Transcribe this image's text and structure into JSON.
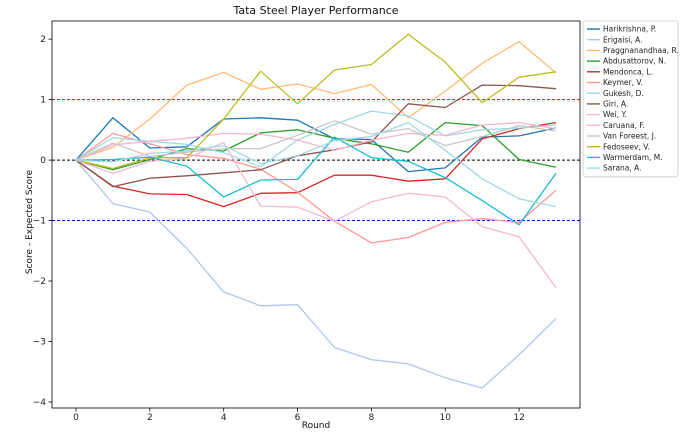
{
  "chart_data": {
    "type": "line",
    "title": "Tata Steel Player Performance",
    "xlabel": "Round",
    "ylabel": "Score - Expected Score",
    "xlim": [
      -0.65,
      13.65
    ],
    "ylim": [
      -4.1,
      2.3
    ],
    "xticks": [
      0,
      2,
      4,
      6,
      8,
      10,
      12
    ],
    "yticks": [
      -4,
      -3,
      -2,
      -1,
      0,
      1,
      2
    ],
    "grid": false,
    "legend_position": "outside-top-right",
    "reference_lines": [
      {
        "y": 1,
        "color": "#ff0000",
        "style": "dashed"
      },
      {
        "y": 0,
        "color": "#000000",
        "style": "dashed"
      },
      {
        "y": -1,
        "color": "#0000ff",
        "style": "dashed"
      }
    ],
    "x": [
      0,
      1,
      2,
      3,
      4,
      5,
      6,
      7,
      8,
      9,
      10,
      11,
      12,
      13
    ],
    "series": [
      {
        "name": "Harikrishna, P.",
        "color": "#1f77b4",
        "values": [
          0,
          0.7,
          0.2,
          0.22,
          0.68,
          0.7,
          0.66,
          0.35,
          0.34,
          -0.19,
          -0.13,
          0.38,
          0.4,
          0.53
        ]
      },
      {
        "name": "Erigaisi, A.",
        "color": "#aec7e8",
        "values": [
          0,
          -0.72,
          -0.86,
          -1.46,
          -2.18,
          -2.41,
          -2.39,
          -3.1,
          -3.3,
          -3.37,
          -3.6,
          -3.77,
          -3.22,
          -2.62
        ]
      },
      {
        "name": "Praggnanandhaa, R.",
        "color": "#ffbb78",
        "values": [
          0,
          0.21,
          0.68,
          1.24,
          1.45,
          1.17,
          1.26,
          1.1,
          1.25,
          0.7,
          1.14,
          1.6,
          1.96,
          1.44
        ]
      },
      {
        "name": "Abdusattorov, N.",
        "color": "#2ca02c",
        "values": [
          0,
          -0.16,
          0.01,
          0.19,
          0.15,
          0.45,
          0.5,
          0.36,
          0.27,
          0.13,
          0.62,
          0.57,
          0.01,
          -0.12
        ]
      },
      {
        "name": "Mendonca, L.",
        "color": "#d62728",
        "values": [
          0,
          -0.43,
          -0.56,
          -0.57,
          -0.77,
          -0.55,
          -0.54,
          -0.25,
          -0.25,
          -0.35,
          -0.31,
          0.35,
          0.52,
          0.62
        ]
      },
      {
        "name": "Keymer, V.",
        "color": "#ff9896",
        "values": [
          0,
          0.44,
          0.27,
          0.09,
          0.03,
          -0.15,
          -0.53,
          -1.01,
          -1.37,
          -1.28,
          -1.03,
          -0.97,
          -1.03,
          -0.5
        ]
      },
      {
        "name": "Gukesh, D.",
        "color": "#9edae5",
        "values": [
          0,
          0.37,
          0.31,
          0.26,
          0.12,
          -0.11,
          0.33,
          0.59,
          0.81,
          0.73,
          0.4,
          0.5,
          0.53,
          0.58
        ]
      },
      {
        "name": "Giri, A.",
        "color": "#8c564b",
        "values": [
          0,
          -0.44,
          -0.3,
          -0.26,
          -0.21,
          -0.16,
          0.07,
          0.17,
          0.3,
          0.93,
          0.87,
          1.24,
          1.23,
          1.18
        ]
      },
      {
        "name": "Wei, Y.",
        "color": "#f7b6d2",
        "values": [
          0,
          0.25,
          0.31,
          0.36,
          0.44,
          0.43,
          0.33,
          0.16,
          0.33,
          0.44,
          0.41,
          0.58,
          0.62,
          0.52
        ]
      },
      {
        "name": "Caruana, F.",
        "color": "#f7b6d2",
        "values": [
          0,
          -0.22,
          -0.02,
          0.03,
          0.29,
          -0.76,
          -0.78,
          -1.01,
          -0.69,
          -0.55,
          -0.61,
          -1.1,
          -1.27,
          -2.11
        ]
      },
      {
        "name": "Van Foreest, J.",
        "color": "#c7c7c7",
        "values": [
          0,
          0.28,
          0.06,
          0.13,
          0.19,
          0.19,
          0.41,
          0.65,
          0.43,
          0.52,
          0.24,
          0.39,
          0.57,
          0.48
        ]
      },
      {
        "name": "Fedoseev, V.",
        "color": "#bcbd22",
        "values": [
          0,
          -0.14,
          0.04,
          0.04,
          0.68,
          1.47,
          0.93,
          1.49,
          1.58,
          2.08,
          1.62,
          0.95,
          1.37,
          1.46
        ]
      },
      {
        "name": "Warmerdam, M.",
        "color": "#17becf",
        "values": [
          0,
          0.01,
          0.05,
          -0.1,
          -0.61,
          -0.33,
          -0.32,
          0.38,
          0.04,
          -0.02,
          -0.29,
          -0.67,
          -1.07,
          -0.22
        ]
      },
      {
        "name": "Sarana, A.",
        "color": "#9edae5",
        "values": [
          0,
          -0.03,
          0.11,
          0.15,
          0.24,
          -0.06,
          0.07,
          0.32,
          0.39,
          0.62,
          0.16,
          -0.31,
          -0.64,
          -0.77
        ]
      }
    ]
  }
}
